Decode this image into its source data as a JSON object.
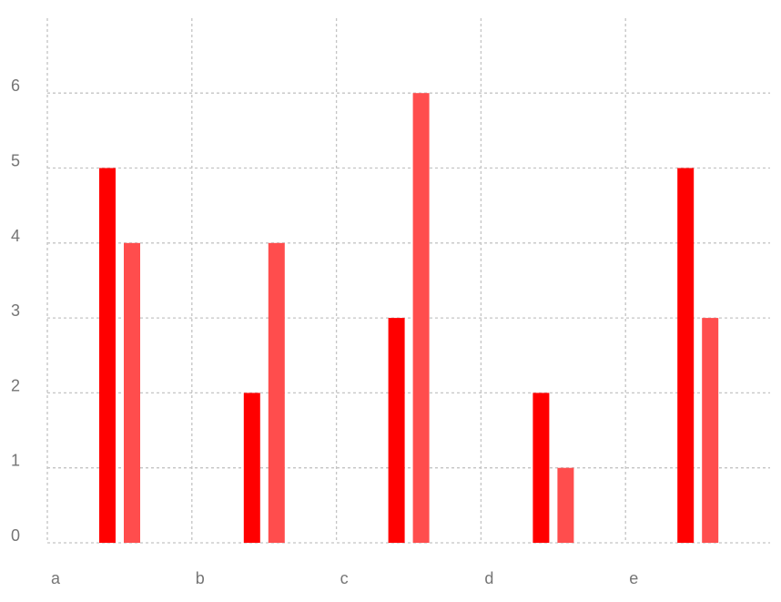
{
  "chart_data": {
    "type": "bar",
    "title": "",
    "xlabel": "",
    "ylabel": "",
    "categories": [
      "a",
      "b",
      "c",
      "d",
      "e"
    ],
    "y_ticks": [
      "0",
      "1",
      "2",
      "3",
      "4",
      "5",
      "6"
    ],
    "ylim": [
      0,
      7
    ],
    "grid": true,
    "legend": "none",
    "series": [
      {
        "values": [
          5,
          2,
          3,
          2,
          5
        ],
        "color": "#ff0000"
      },
      {
        "values": [
          4,
          4,
          6,
          1,
          3
        ],
        "color": "#ff4d4d"
      }
    ]
  }
}
